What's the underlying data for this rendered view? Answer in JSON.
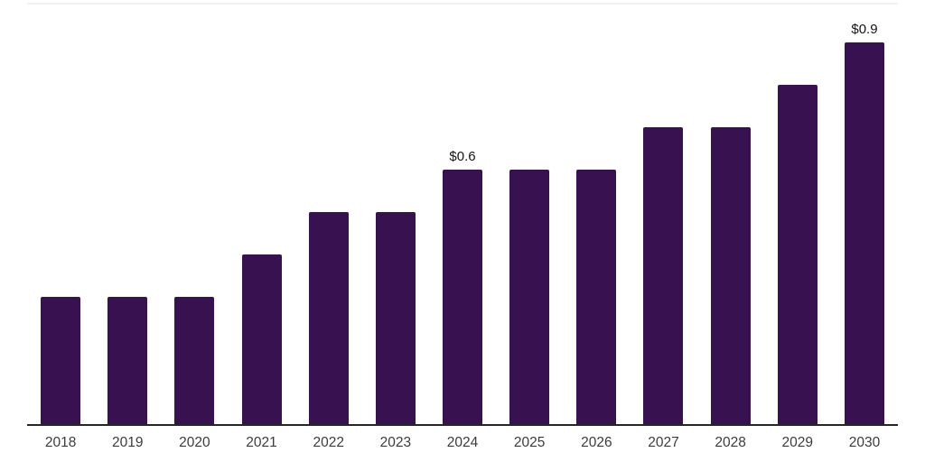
{
  "chart_data": {
    "type": "bar",
    "title": "",
    "xlabel": "",
    "ylabel": "",
    "categories": [
      "2018",
      "2019",
      "2020",
      "2021",
      "2022",
      "2023",
      "2024",
      "2025",
      "2026",
      "2027",
      "2028",
      "2029",
      "2030"
    ],
    "values": [
      0.3,
      0.3,
      0.3,
      0.4,
      0.5,
      0.5,
      0.6,
      0.6,
      0.6,
      0.7,
      0.7,
      0.8,
      0.9
    ],
    "data_labels": {
      "2024": "$0.6",
      "2030": "$0.9"
    },
    "ylim": [
      0,
      0.99
    ],
    "grid": "off",
    "legend": "none",
    "bar_color": "#371150",
    "axis_line_color": "#262626",
    "top_border_color": "#f1f1f4",
    "tick_label_color": "#3c3c3c",
    "data_label_color": "#141414"
  }
}
